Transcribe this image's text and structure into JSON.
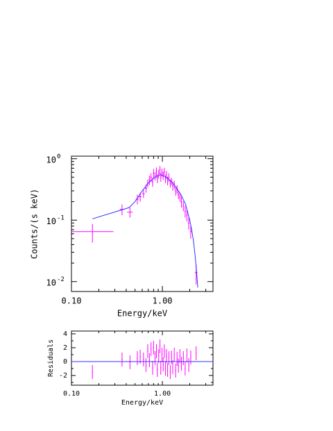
{
  "chart_data": [
    {
      "type": "spectrum",
      "x_label": "Energy/keV",
      "y_label": "Counts/(s keV)",
      "xlog": true,
      "ylog": true,
      "xlim": [
        0.1,
        3.6
      ],
      "ylim": [
        0.0069,
        1.1
      ],
      "xticks": [
        {
          "value": 0.1,
          "label": "0.10"
        },
        {
          "value": 1,
          "label": "1.00"
        }
      ],
      "xminor": [
        0.2,
        0.3,
        0.4,
        0.5,
        0.6,
        0.7,
        0.8,
        0.9,
        2,
        3
      ],
      "yticks": [
        {
          "value": 0.01,
          "label": "10",
          "exponent": "-2"
        },
        {
          "value": 0.1,
          "label": "10",
          "exponent": "-1"
        },
        {
          "value": 1,
          "label": "10",
          "exponent": "0"
        }
      ],
      "yminor": [
        0.02,
        0.03,
        0.04,
        0.05,
        0.06,
        0.07,
        0.08,
        0.09,
        0.2,
        0.3,
        0.4,
        0.5,
        0.6,
        0.7,
        0.8,
        0.9
      ],
      "color": "#ff00ff",
      "x": [
        0.17,
        0.36,
        0.44,
        0.53,
        0.57,
        0.62,
        0.66,
        0.69,
        0.72,
        0.75,
        0.78,
        0.8,
        0.83,
        0.86,
        0.88,
        0.91,
        0.94,
        0.96,
        0.99,
        1.02,
        1.05,
        1.08,
        1.11,
        1.14,
        1.18,
        1.22,
        1.26,
        1.3,
        1.35,
        1.4,
        1.45,
        1.5,
        1.56,
        1.62,
        1.7,
        1.78,
        1.86,
        1.95,
        2.05,
        2.35
      ],
      "xerr": [
        0.12,
        0.02,
        0.03,
        0.02,
        0.02,
        0.02,
        0.02,
        0.015,
        0.015,
        0.015,
        0.015,
        0.015,
        0.015,
        0.015,
        0.015,
        0.015,
        0.015,
        0.015,
        0.015,
        0.015,
        0.015,
        0.015,
        0.015,
        0.015,
        0.02,
        0.02,
        0.02,
        0.02,
        0.02,
        0.02,
        0.025,
        0.025,
        0.025,
        0.03,
        0.03,
        0.03,
        0.03,
        0.04,
        0.04,
        0.08
      ],
      "values": [
        0.065,
        0.15,
        0.135,
        0.22,
        0.24,
        0.27,
        0.33,
        0.4,
        0.45,
        0.5,
        0.42,
        0.58,
        0.52,
        0.62,
        0.48,
        0.57,
        0.66,
        0.5,
        0.6,
        0.53,
        0.62,
        0.47,
        0.55,
        0.44,
        0.5,
        0.4,
        0.43,
        0.36,
        0.38,
        0.3,
        0.32,
        0.26,
        0.24,
        0.2,
        0.17,
        0.14,
        0.12,
        0.09,
        0.065,
        0.014
      ],
      "errors": [
        0.022,
        0.03,
        0.025,
        0.04,
        0.04,
        0.04,
        0.05,
        0.06,
        0.08,
        0.08,
        0.07,
        0.1,
        0.08,
        0.1,
        0.08,
        0.09,
        0.1,
        0.08,
        0.09,
        0.08,
        0.09,
        0.07,
        0.08,
        0.07,
        0.08,
        0.06,
        0.06,
        0.06,
        0.06,
        0.05,
        0.05,
        0.04,
        0.04,
        0.04,
        0.03,
        0.03,
        0.025,
        0.02,
        0.015,
        0.005
      ],
      "model": {
        "color": "#3030ff",
        "x": [
          0.17,
          0.43,
          0.5,
          0.6,
          0.7,
          0.8,
          0.95,
          1.1,
          1.25,
          1.4,
          1.6,
          1.8,
          2.0,
          2.1,
          2.2,
          2.3,
          2.4,
          2.45
        ],
        "values": [
          0.105,
          0.16,
          0.2,
          0.3,
          0.4,
          0.48,
          0.55,
          0.5,
          0.43,
          0.35,
          0.26,
          0.18,
          0.1,
          0.07,
          0.045,
          0.025,
          0.012,
          0.008
        ]
      }
    },
    {
      "type": "residuals",
      "x_label": "Energy/keV",
      "y_label": "Residuals",
      "xlog": true,
      "ylog": false,
      "xlim": [
        0.1,
        3.6
      ],
      "ylim": [
        -3.4,
        4.4
      ],
      "xticks": [
        {
          "value": 0.1,
          "label": "0.10"
        },
        {
          "value": 1,
          "label": "1.00"
        }
      ],
      "xminor": [
        0.2,
        0.3,
        0.4,
        0.5,
        0.6,
        0.7,
        0.8,
        0.9,
        2,
        3
      ],
      "yticks": [
        -2,
        0,
        2,
        4
      ],
      "yminor": [
        -3,
        -1,
        1,
        3
      ],
      "color": "#ff00ff",
      "x": [
        0.17,
        0.36,
        0.44,
        0.53,
        0.57,
        0.62,
        0.66,
        0.69,
        0.72,
        0.75,
        0.78,
        0.8,
        0.83,
        0.86,
        0.88,
        0.91,
        0.94,
        0.96,
        0.99,
        1.02,
        1.05,
        1.08,
        1.11,
        1.14,
        1.18,
        1.22,
        1.26,
        1.3,
        1.35,
        1.4,
        1.45,
        1.5,
        1.56,
        1.62,
        1.7,
        1.78,
        1.86,
        1.95,
        2.05,
        2.35
      ],
      "values": [
        -1.5,
        0.3,
        -0.1,
        0.5,
        0.7,
        0.3,
        -0.5,
        1.5,
        0.2,
        1.8,
        -0.9,
        2.0,
        0.5,
        1.5,
        -1.2,
        0.8,
        2.2,
        -0.9,
        1.0,
        -0.4,
        1.5,
        -1.0,
        0.8,
        -1.2,
        0.5,
        -1.5,
        0.6,
        -0.8,
        1.0,
        -1.3,
        0.4,
        -0.6,
        0.8,
        -0.3,
        0.5,
        -1.0,
        0.9,
        -0.5,
        0.6,
        1.2
      ],
      "errors": [
        1,
        1,
        1,
        1,
        1,
        1,
        1,
        1,
        1,
        1,
        1,
        1,
        1,
        1,
        1,
        1,
        1,
        1,
        1,
        1,
        1,
        1,
        1,
        1,
        1,
        1,
        1,
        1,
        1,
        1,
        1,
        1,
        1,
        1,
        1,
        1,
        1,
        1,
        1,
        1
      ],
      "reference_line": 0,
      "reference_color": "#3030ff"
    }
  ]
}
